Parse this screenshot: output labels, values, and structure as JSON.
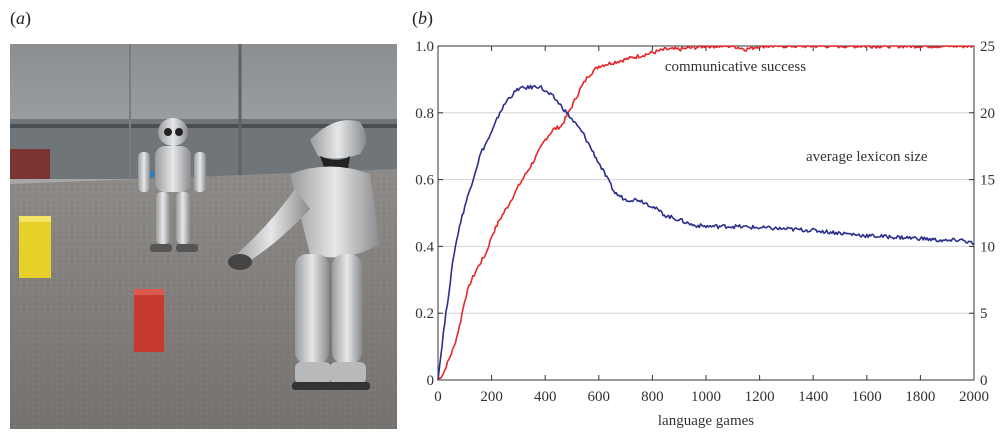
{
  "panels": {
    "a_label": "a",
    "b_label": "b"
  },
  "photo": {
    "description_icon": "robot-photo"
  },
  "chart_data": {
    "type": "line",
    "xlabel": "language games",
    "xlim": [
      0,
      2000
    ],
    "xticks": [
      0,
      200,
      400,
      600,
      800,
      1000,
      1200,
      1400,
      1600,
      1800,
      2000
    ],
    "ylim_left": [
      0,
      1.0
    ],
    "yticks_left": [
      0,
      0.2,
      0.4,
      0.6,
      0.8,
      1.0
    ],
    "ylim_right": [
      0,
      25
    ],
    "yticks_right": [
      0,
      5,
      10,
      15,
      20,
      25
    ],
    "grid": "horizontal",
    "series": [
      {
        "name": "communicative success",
        "axis": "left",
        "color": "#e8262b",
        "x": [
          0,
          20,
          40,
          60,
          80,
          100,
          120,
          150,
          180,
          200,
          230,
          260,
          300,
          330,
          360,
          400,
          430,
          460,
          500,
          530,
          560,
          600,
          650,
          700,
          750,
          800,
          850,
          900,
          950,
          1000,
          1050,
          1100,
          1150,
          1200,
          1300,
          1400,
          1500,
          1600,
          1700,
          1800,
          1900,
          2000
        ],
        "values": [
          0.0,
          0.02,
          0.06,
          0.1,
          0.16,
          0.24,
          0.29,
          0.34,
          0.38,
          0.43,
          0.48,
          0.52,
          0.58,
          0.62,
          0.66,
          0.72,
          0.75,
          0.76,
          0.82,
          0.87,
          0.91,
          0.94,
          0.95,
          0.96,
          0.97,
          0.98,
          0.99,
          0.99,
          0.995,
          1.0,
          1.0,
          1.0,
          0.99,
          1.0,
          1.0,
          1.0,
          1.0,
          1.0,
          1.0,
          1.0,
          1.0,
          1.0
        ]
      },
      {
        "name": "average lexicon size",
        "axis": "right",
        "color": "#2b2e8c",
        "x": [
          0,
          20,
          40,
          60,
          80,
          100,
          130,
          160,
          200,
          230,
          260,
          300,
          340,
          380,
          400,
          430,
          460,
          500,
          540,
          580,
          620,
          660,
          700,
          750,
          800,
          850,
          900,
          950,
          1000,
          1100,
          1200,
          1300,
          1400,
          1500,
          1600,
          1700,
          1800,
          1900,
          1950,
          2000
        ],
        "values": [
          0,
          3.5,
          6.5,
          9.5,
          11.5,
          13.0,
          15.0,
          17.0,
          18.5,
          20.0,
          21.0,
          21.8,
          21.9,
          22.0,
          21.6,
          21.2,
          20.5,
          19.5,
          18.5,
          17.0,
          15.5,
          14.0,
          13.5,
          13.5,
          13.0,
          12.3,
          12.0,
          11.6,
          11.5,
          11.5,
          11.4,
          11.3,
          11.2,
          11.0,
          10.8,
          10.7,
          10.6,
          10.4,
          10.5,
          10.2
        ]
      }
    ],
    "annotations": [
      {
        "text": "communicative success",
        "x": 1110,
        "y": 0.94,
        "axis": "left"
      },
      {
        "text": "average lexicon size",
        "x": 1600,
        "y": 0.67,
        "axis": "left"
      }
    ]
  }
}
